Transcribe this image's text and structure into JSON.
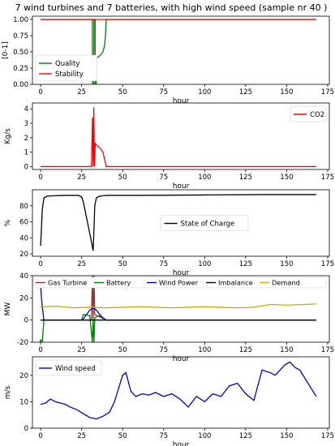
{
  "figure": {
    "title": "7 wind turbines and 7 batteries, with high wind speed (sample nr 40 )"
  },
  "colors": {
    "quality": "#008000",
    "stability": "#ff0000",
    "co2": "#ff0000",
    "soc": "#000000",
    "gas": "#8b3a3a",
    "battery": "#008000",
    "wind_power": "#0000cc",
    "imbalance": "#000000",
    "demand": "#ccaa00",
    "wind_speed": "#0000cc"
  },
  "chart_data": [
    {
      "type": "line",
      "xlabel": "hour",
      "ylabel": "[0-1]",
      "xlim": [
        -5,
        176
      ],
      "ylim": [
        0,
        1.05
      ],
      "xticks": [
        0,
        25,
        50,
        75,
        100,
        125,
        150,
        175
      ],
      "yticks": [
        0.0,
        0.25,
        0.5,
        0.75,
        1.0
      ],
      "ytick_labels": [
        "0.00",
        "0.25",
        "0.50",
        "0.75",
        "1.00"
      ],
      "legend": {
        "position": "lower-left",
        "entries": [
          "Quality",
          "Stability"
        ]
      },
      "series": [
        {
          "name": "Quality",
          "color": "#008000",
          "x": [
            0,
            31.5,
            31.6,
            32.4,
            32.5,
            33.2,
            33.3,
            33.9,
            34,
            36,
            38,
            39,
            39.5,
            40,
            168
          ],
          "y": [
            1.0,
            1.0,
            0.0,
            0.0,
            1.0,
            1.0,
            0.0,
            0.0,
            0.4,
            0.44,
            0.5,
            0.6,
            0.75,
            1.0,
            1.0
          ]
        },
        {
          "name": "Stability",
          "color": "#ff0000",
          "x": [
            0,
            168
          ],
          "y": [
            1.0,
            1.0
          ]
        }
      ]
    },
    {
      "type": "line",
      "xlabel": "hour",
      "ylabel": "Kg/s",
      "xlim": [
        -5,
        176
      ],
      "ylim": [
        -0.2,
        4.4
      ],
      "xticks": [
        0,
        25,
        50,
        75,
        100,
        125,
        150,
        175
      ],
      "yticks": [
        0,
        1,
        2,
        3,
        4
      ],
      "legend": {
        "position": "top-right",
        "entries": [
          "CO2"
        ]
      },
      "series": [
        {
          "name": "CO2",
          "color": "#ff0000",
          "x": [
            0,
            31,
            31.6,
            32,
            32.4,
            32.8,
            33.3,
            34,
            36,
            38,
            39,
            40,
            168
          ],
          "y": [
            0,
            0,
            3.4,
            0,
            4.1,
            0,
            1.6,
            1.5,
            1.3,
            1.0,
            0.5,
            0,
            0
          ]
        }
      ]
    },
    {
      "type": "line",
      "xlabel": "hour",
      "ylabel": "%",
      "xlim": [
        -5,
        176
      ],
      "ylim": [
        17,
        100
      ],
      "xticks": [
        0,
        25,
        50,
        75,
        100,
        125,
        150,
        175
      ],
      "yticks": [
        20,
        40,
        60,
        80
      ],
      "legend": {
        "position": "center-right",
        "entries": [
          "State of Charge"
        ]
      },
      "series": [
        {
          "name": "State of Charge",
          "color": "#000000",
          "x": [
            0,
            1,
            2,
            4,
            8,
            15,
            23,
            25,
            26,
            27,
            28,
            29,
            30,
            31,
            32,
            32.5,
            33,
            34,
            36,
            40,
            60,
            100,
            140,
            168
          ],
          "y": [
            30,
            75,
            90,
            92,
            92.5,
            93,
            93,
            91,
            85,
            75,
            65,
            55,
            45,
            35,
            24,
            50,
            80,
            90,
            92,
            93,
            93,
            93.5,
            94,
            94
          ]
        }
      ]
    },
    {
      "type": "line",
      "xlabel": "hour",
      "ylabel": "MW",
      "xlim": [
        -5,
        176
      ],
      "ylim": [
        -20,
        40
      ],
      "xticks": [
        0,
        25,
        50,
        75,
        100,
        125,
        150,
        175
      ],
      "yticks": [
        -20,
        0,
        20,
        40
      ],
      "legend": {
        "position": "top",
        "entries": [
          "Gas Turbine",
          "Battery",
          "Wind Power",
          "Imbalance",
          "Demand"
        ]
      },
      "series": [
        {
          "name": "Gas Turbine",
          "color": "#8b3a3a",
          "x": [
            0,
            31,
            31.5,
            32,
            32.5,
            33,
            40,
            168
          ],
          "y": [
            0,
            0,
            40,
            0,
            40,
            5,
            0,
            0
          ]
        },
        {
          "name": "Battery",
          "color": "#008000",
          "x": [
            -0.5,
            0,
            1,
            2,
            25,
            26,
            30,
            31.5,
            32,
            32.5,
            33,
            34,
            36,
            40,
            168
          ],
          "y": [
            -20,
            -18,
            -20,
            0,
            0,
            5,
            4,
            -20,
            0,
            -20,
            2,
            3,
            4,
            0,
            0
          ]
        },
        {
          "name": "Wind Power",
          "color": "#0000cc",
          "x": [
            0,
            0.5,
            1,
            2,
            25,
            26,
            28,
            30,
            32,
            34,
            36,
            38,
            40,
            168
          ],
          "y": [
            30,
            20,
            12,
            0,
            0,
            1,
            5,
            9,
            11,
            9,
            5,
            2,
            0,
            0
          ]
        },
        {
          "name": "Imbalance",
          "color": "#000000",
          "x": [
            0,
            168
          ],
          "y": [
            0,
            0
          ]
        },
        {
          "name": "Demand",
          "color": "#ccaa00",
          "x": [
            0,
            10,
            20,
            30,
            40,
            50,
            60,
            70,
            80,
            90,
            100,
            110,
            120,
            130,
            140,
            150,
            160,
            168
          ],
          "y": [
            12,
            12.5,
            11,
            11.5,
            11,
            11.5,
            12,
            11.5,
            11,
            11.5,
            12,
            11.5,
            11,
            11.5,
            14,
            13.5,
            14,
            14.5
          ]
        }
      ]
    },
    {
      "type": "line",
      "xlabel": "hour",
      "ylabel": "m/s",
      "xlim": [
        -5,
        176
      ],
      "ylim": [
        0,
        27
      ],
      "xticks": [
        0,
        25,
        50,
        75,
        100,
        125,
        150,
        175
      ],
      "yticks": [
        0,
        10,
        20
      ],
      "legend": {
        "position": "top-left",
        "entries": [
          "Wind speed"
        ]
      },
      "series": [
        {
          "name": "Wind speed",
          "color": "#0000cc",
          "x": [
            0,
            3,
            6,
            9,
            12,
            15,
            18,
            22,
            26,
            30,
            34,
            38,
            42,
            45,
            48,
            50,
            52,
            55,
            58,
            62,
            66,
            70,
            75,
            80,
            85,
            90,
            95,
            100,
            105,
            110,
            115,
            120,
            125,
            130,
            135,
            140,
            143,
            146,
            149,
            152,
            155,
            158,
            162,
            165,
            168
          ],
          "y": [
            9,
            9.5,
            11,
            10,
            9.5,
            9,
            8,
            7,
            5.5,
            4,
            3.5,
            4.5,
            6,
            10,
            16,
            20,
            21,
            14,
            12,
            13,
            12.5,
            13.5,
            12,
            13,
            11,
            8,
            12,
            10,
            13,
            12,
            16,
            17,
            13,
            10.5,
            22,
            21,
            20,
            22,
            24,
            25,
            23,
            22,
            18,
            15,
            12
          ]
        }
      ]
    }
  ]
}
